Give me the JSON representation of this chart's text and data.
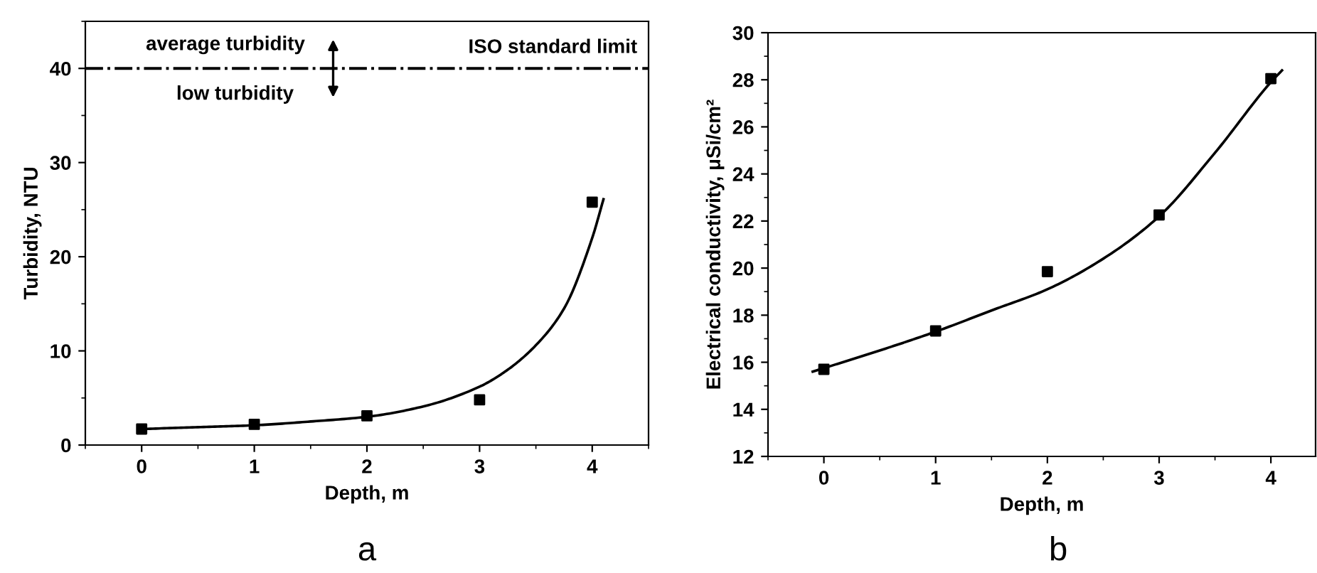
{
  "chart_data": [
    {
      "type": "scatter",
      "xlabel": "Depth, m",
      "ylabel": "Turbidity, NTU",
      "xlim": [
        -0.5,
        4.5
      ],
      "ylim": [
        0,
        45
      ],
      "xticks": [
        0,
        1,
        2,
        3,
        4
      ],
      "yticks": [
        0,
        10,
        20,
        30,
        40
      ],
      "marker": "square",
      "grid": false,
      "legend": false,
      "series": [
        {
          "color": "#000000",
          "x": [
            0,
            1,
            2,
            3,
            4
          ],
          "values": [
            1.7,
            2.2,
            3.1,
            4.8,
            25.8
          ]
        },
        {
          "type": "line",
          "color": "#000000",
          "marker": "none",
          "x": [
            0,
            0.5,
            1,
            1.5,
            2,
            2.5,
            3,
            3.25,
            3.5,
            3.75,
            4,
            4.1
          ],
          "values": [
            1.7,
            1.9,
            2.1,
            2.5,
            3.0,
            4.1,
            6.2,
            8.0,
            10.6,
            14.5,
            22.0,
            26.1
          ]
        }
      ],
      "ref_lines": [
        {
          "axis": "y",
          "value": 40,
          "label": "ISO standard limit",
          "color": "#000000",
          "line_style": "dashdot"
        }
      ],
      "annotations": [
        "average turbidity",
        "low turbidity",
        "a"
      ]
    },
    {
      "type": "scatter",
      "xlabel": "Depth, m",
      "ylabel": "Electrical conductivity, μSi/cm²",
      "xlim": [
        -0.5,
        4.4
      ],
      "ylim": [
        12,
        30
      ],
      "xticks": [
        0,
        1,
        2,
        3,
        4
      ],
      "yticks": [
        12,
        14,
        16,
        18,
        20,
        22,
        24,
        26,
        28,
        30
      ],
      "marker": "square",
      "grid": false,
      "legend": false,
      "series": [
        {
          "color": "#000000",
          "x": [
            0,
            1,
            2,
            3,
            4
          ],
          "values": [
            15.7,
            17.33,
            19.85,
            22.26,
            28.05
          ]
        },
        {
          "type": "line",
          "color": "#000000",
          "marker": "none",
          "x": [
            -0.1,
            0,
            0.5,
            1,
            1.5,
            2,
            2.5,
            3,
            3.5,
            4,
            4.1
          ],
          "values": [
            15.6,
            15.75,
            16.5,
            17.3,
            18.2,
            19.1,
            20.4,
            22.2,
            24.9,
            27.9,
            28.4
          ]
        }
      ],
      "annotations": [
        "b"
      ]
    }
  ]
}
